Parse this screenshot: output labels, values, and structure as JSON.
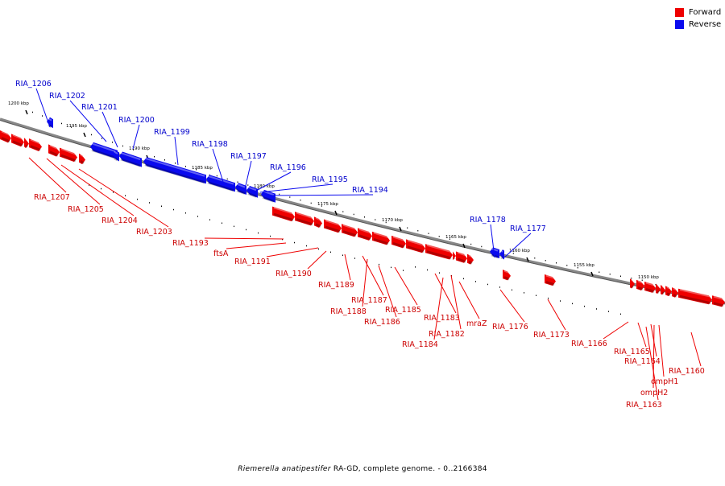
{
  "colors": {
    "forward": "#ee0000",
    "reverse": "#0a0aee",
    "forward_label": "#cc0000",
    "reverse_label": "#0000cc",
    "backbone": "#888888",
    "ticks": "#000000"
  },
  "legend": {
    "forward": "Forward",
    "reverse": "Reverse"
  },
  "caption": {
    "species": "Riemerella anatipestifer",
    "rest": " RA-GD, complete genome. - 0..2166384"
  },
  "scale": {
    "unit": "kbp",
    "ticks": [
      "1200 kbp",
      "1195 kbp",
      "1190 kbp",
      "1185 kbp",
      "1180 kbp",
      "1175 kbp",
      "1170 kbp",
      "1165 kbp",
      "1160 kbp",
      "1155 kbp",
      "1150 kbp"
    ]
  },
  "reverse_labels": [
    "RIA_1206",
    "RIA_1202",
    "RIA_1201",
    "RIA_1200",
    "RIA_1199",
    "RIA_1198",
    "RIA_1197",
    "RIA_1196",
    "RIA_1195",
    "RIA_1194",
    "RIA_1178",
    "RIA_1177"
  ],
  "forward_labels": [
    "RIA_1207",
    "RIA_1205",
    "RIA_1204",
    "RIA_1203",
    "RIA_1193",
    "ftsA",
    "RIA_1191",
    "RIA_1190",
    "RIA_1189",
    "RIA_1187",
    "RIA_1188",
    "RIA_1186",
    "RIA_1185",
    "RIA_1183",
    "RIA_1182",
    "RIA_1184",
    "mraZ",
    "RIA_1176",
    "RIA_1173",
    "RIA_1166",
    "RIA_1165",
    "RIA_1164",
    "ompH1",
    "ompH2",
    "RIA_1163",
    "RIA_1160"
  ]
}
